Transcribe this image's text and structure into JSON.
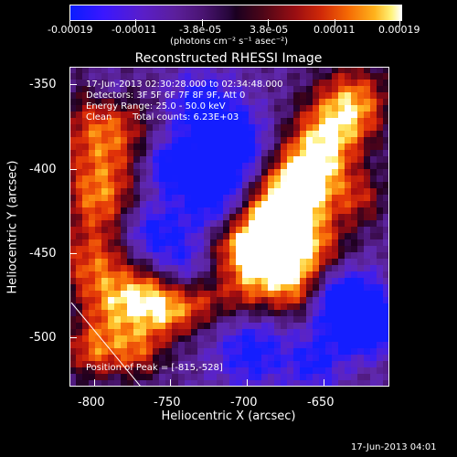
{
  "colorbar": {
    "ticks": [
      "-0.00019",
      "-0.00011",
      "-3.8e-05",
      "3.8e-05",
      "0.00011",
      "0.00019"
    ],
    "unit_label": "(photons cm⁻² s⁻¹ asec⁻²)"
  },
  "chart_data": {
    "type": "heatmap",
    "title": "Reconstructed RHESSI Image",
    "xlabel": "Heliocentric X (arcsec)",
    "ylabel": "Heliocentric Y (arcsec)",
    "xlim": [
      -812,
      -625
    ],
    "ylim": [
      -533,
      -342
    ],
    "xticks": [
      "-800",
      "-750",
      "-700",
      "-650"
    ],
    "yticks": [
      "-350",
      "-400",
      "-450",
      "-500"
    ],
    "zlim": [
      -0.00019,
      0.00019
    ],
    "info": {
      "time": "17-Jun-2013 02:30:28.000 to 02:34:48.000",
      "detectors": "Detectors: 3F 5F 6F 7F 8F 9F, Att 0",
      "energy": "Energy Range: 25.0 - 50.0 keV",
      "method": "Clean",
      "counts": "Total counts: 6.23E+03"
    },
    "peak_text": "Position of Peak = [-815,-528]",
    "peak": [
      -815,
      -528
    ]
  },
  "footer": {
    "timestamp": "17-Jun-2013 04:01"
  }
}
